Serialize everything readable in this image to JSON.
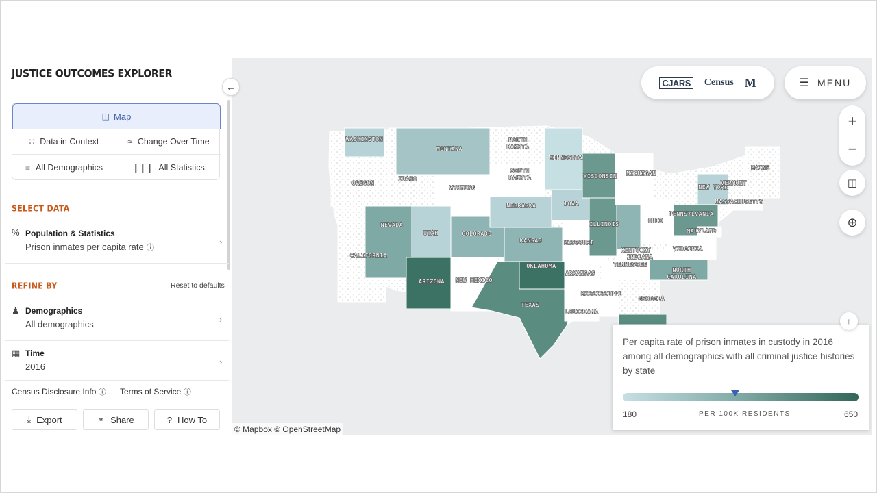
{
  "app": {
    "title": "JUSTICE OUTCOMES EXPLORER"
  },
  "views": {
    "map": "Map",
    "data_in_context": "Data in Context",
    "change_over_time": "Change Over Time",
    "all_demographics": "All Demographics",
    "all_statistics": "All Statistics"
  },
  "select_data": {
    "heading": "SELECT DATA",
    "title": "Population & Statistics",
    "value": "Prison inmates per capita rate"
  },
  "refine": {
    "heading": "REFINE BY",
    "reset": "Reset to defaults",
    "demographics_title": "Demographics",
    "demographics_value": "All demographics",
    "time_title": "Time",
    "time_value": "2016"
  },
  "footer": {
    "census_disclosure": "Census Disclosure Info",
    "terms": "Terms of Service",
    "export": "Export",
    "share": "Share",
    "how_to": "How To"
  },
  "header": {
    "logo_cjars": "CJARS",
    "logo_census": "Census",
    "logo_m": "M",
    "menu": "MENU"
  },
  "map": {
    "attribution": "© Mapbox © OpenStreetMap",
    "legend": {
      "description": "Per capita rate of prison inmates in custody in 2016 among all demographics with all criminal justice histories by state",
      "min": "180",
      "max": "650",
      "units": "PER 100K RESIDENTS",
      "colors": {
        "low": "#c6dfe3",
        "mid": "#7fa9a5",
        "high": "#32665a"
      }
    },
    "states": [
      {
        "name": "WASHINGTON"
      },
      {
        "name": "OREGON"
      },
      {
        "name": "CALIFORNIA"
      },
      {
        "name": "IDAHO"
      },
      {
        "name": "NEVADA"
      },
      {
        "name": "MONTANA"
      },
      {
        "name": "WYOMING"
      },
      {
        "name": "UTAH"
      },
      {
        "name": "ARIZONA"
      },
      {
        "name": "COLORADO"
      },
      {
        "name": "NEW MEXICO"
      },
      {
        "name": "NORTH DAKOTA"
      },
      {
        "name": "SOUTH DAKOTA"
      },
      {
        "name": "NEBRASKA"
      },
      {
        "name": "KANSAS"
      },
      {
        "name": "OKLAHOMA"
      },
      {
        "name": "TEXAS"
      },
      {
        "name": "MINNESOTA"
      },
      {
        "name": "IOWA"
      },
      {
        "name": "MISSOURI"
      },
      {
        "name": "ARKANSAS"
      },
      {
        "name": "LOUISIANA"
      },
      {
        "name": "WISCONSIN"
      },
      {
        "name": "ILLINOIS"
      },
      {
        "name": "MICHIGAN"
      },
      {
        "name": "INDIANA"
      },
      {
        "name": "OHIO"
      },
      {
        "name": "KENTUCKY"
      },
      {
        "name": "TENNESSEE"
      },
      {
        "name": "MISSISSIPPI"
      },
      {
        "name": "GEORGIA"
      },
      {
        "name": "NORTH CAROLINA"
      },
      {
        "name": "VIRGINIA"
      },
      {
        "name": "PENNSYLVANIA"
      },
      {
        "name": "NEW YORK"
      },
      {
        "name": "MARYLAND"
      },
      {
        "name": "VERMONT"
      },
      {
        "name": "MAINE"
      },
      {
        "name": "MASSACHUSETTS"
      }
    ]
  }
}
